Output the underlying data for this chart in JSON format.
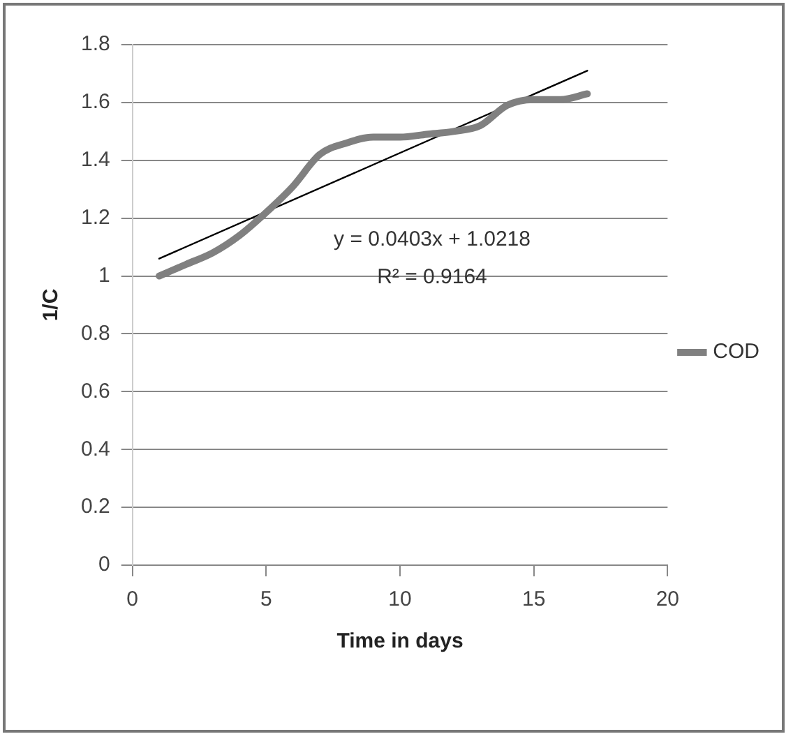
{
  "chart_data": {
    "type": "line",
    "xlabel": "Time in days",
    "ylabel": "1/C",
    "xlim": [
      0,
      20
    ],
    "xticks": [
      0,
      5,
      10,
      15,
      20
    ],
    "ylim": [
      0,
      1.8
    ],
    "yticks": [
      0,
      0.2,
      0.4,
      0.6,
      0.8,
      1,
      1.2,
      1.4,
      1.6,
      1.8
    ],
    "grid": "y",
    "legend": "right",
    "marker": "none",
    "series": [
      {
        "name": "COD",
        "color": "#808080",
        "x": [
          1,
          2,
          3,
          4,
          5,
          6,
          7,
          8,
          9,
          10,
          11,
          12,
          13,
          14,
          15,
          16,
          17
        ],
        "values": [
          1.0,
          1.04,
          1.08,
          1.14,
          1.22,
          1.31,
          1.42,
          1.46,
          1.48,
          1.48,
          1.49,
          1.5,
          1.52,
          1.59,
          1.61,
          1.61,
          1.63
        ]
      },
      {
        "type": "line",
        "color": "#000000",
        "x": [
          1,
          17
        ],
        "values": [
          1.06,
          1.71
        ]
      }
    ],
    "annotations": [
      "y = 0.0403x + 1.0218",
      "R² = 0.9164"
    ]
  }
}
